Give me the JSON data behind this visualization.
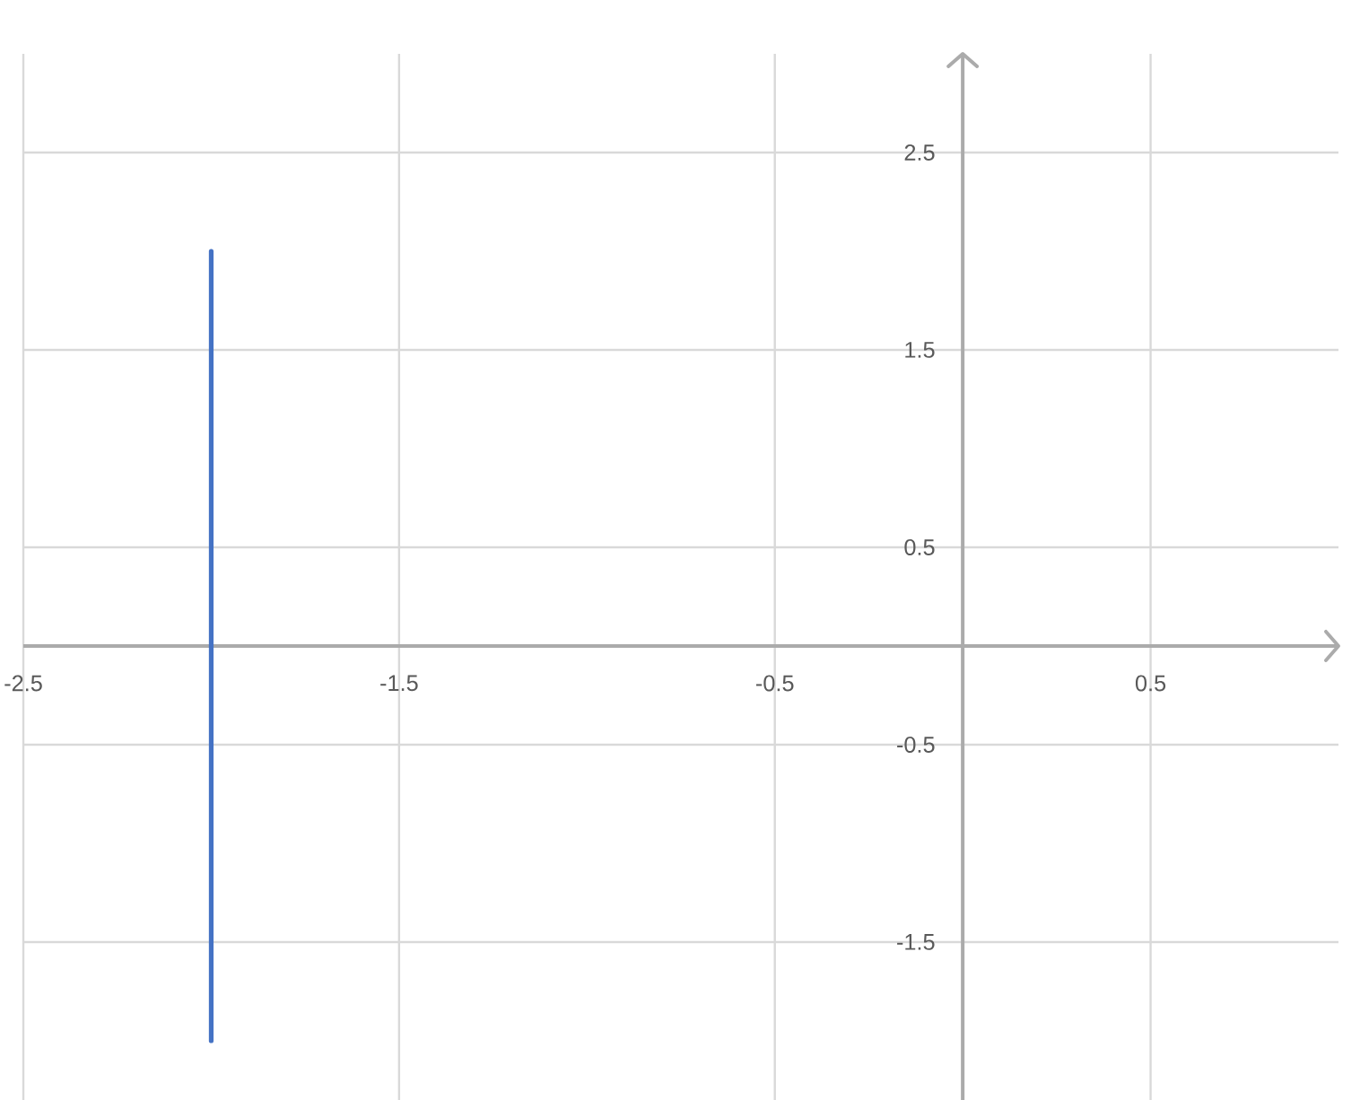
{
  "chart_data": {
    "type": "line",
    "x": [
      -2,
      -2
    ],
    "series": [
      {
        "color": "#4472c4",
        "values": [
          2,
          -2
        ]
      }
    ],
    "xlim": [
      -2.5,
      1
    ],
    "ylim": [
      -2.3,
      3
    ],
    "xticks": [
      -2.5,
      -1.5,
      -0.5,
      0.5
    ],
    "yticks": [
      -1.5,
      -0.5,
      0.5,
      1.5,
      2.5
    ],
    "grid": true,
    "marker": "none",
    "line_style": "solid"
  }
}
